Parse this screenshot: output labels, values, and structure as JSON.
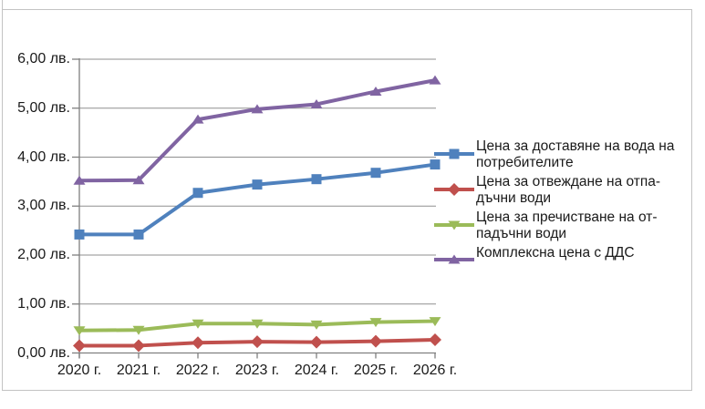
{
  "chart_data": {
    "type": "line",
    "title": "",
    "unit": "лв.",
    "grid": "horizontal",
    "legend_position": "right",
    "categories": [
      "2020 г.",
      "2021 г.",
      "2022 г.",
      "2023 г.",
      "2024 г.",
      "2025 г.",
      "2026 г."
    ],
    "y_tick_labels": [
      "6,00 лв.",
      "5,00 лв.",
      "4,00 лв.",
      "3,00 лв.",
      "2,00 лв.",
      "1,00 лв.",
      "0,00 лв."
    ],
    "ylim": [
      0,
      6
    ],
    "y_step": 1,
    "series": [
      {
        "name": "Цена за доставяне на вода на потребителите",
        "color": "#4f81bd",
        "marker": "square",
        "values": [
          2.42,
          2.42,
          3.27,
          3.44,
          3.55,
          3.68,
          3.85
        ]
      },
      {
        "name": "Цена за отвеждане на отпадъчни води",
        "color": "#c0504d",
        "marker": "diamond",
        "values": [
          0.15,
          0.15,
          0.21,
          0.23,
          0.22,
          0.24,
          0.27
        ]
      },
      {
        "name": "Цена за пречистване на отпадъчни води",
        "color": "#9bbb59",
        "marker": "triangle-down",
        "values": [
          0.46,
          0.47,
          0.6,
          0.6,
          0.58,
          0.63,
          0.65
        ]
      },
      {
        "name": "Комплексна цена с ДДС",
        "color": "#8064a2",
        "marker": "triangle-up",
        "values": [
          3.52,
          3.53,
          4.77,
          4.98,
          5.08,
          5.34,
          5.57
        ]
      }
    ],
    "legend_lines": [
      [
        "Цена за доставяне на вода на",
        "потребителите"
      ],
      [
        "Цена за отвеждане на отпа-",
        "дъчни води"
      ],
      [
        "Цена за пречистване на от-",
        "падъчни води"
      ],
      [
        "Комплексна цена с ДДС"
      ]
    ]
  },
  "colors": {
    "gridline": "#8f8f8f",
    "axis": "#7f7f7f",
    "frame": "#c3c3c3",
    "text": "#1a1a1a"
  }
}
